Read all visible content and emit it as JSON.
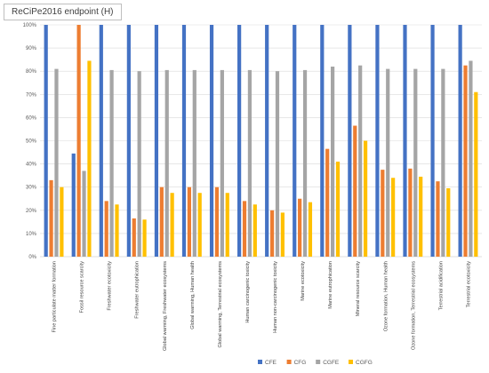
{
  "chart_data": {
    "type": "bar",
    "title": "ReCiPe2016 endpoint (H)",
    "xlabel": "",
    "ylabel": "",
    "ylim": [
      0,
      100
    ],
    "yticks": [
      "0%",
      "10%",
      "20%",
      "30%",
      "40%",
      "50%",
      "60%",
      "70%",
      "80%",
      "90%",
      "100%"
    ],
    "grid": true,
    "legend_position": "bottom",
    "categories": [
      "Fine particulate matter formation",
      "Fossil resource scarcity",
      "Freshwater ecotoxicity",
      "Freshwater eutrophication",
      "Global warming, Freshwater ecosystems",
      "Global warming, Human health",
      "Global warming, Terrestrial ecosystems",
      "Human carcinogenic toxicity",
      "Human non-carcinogenic toxicity",
      "Marine ecotoxicity",
      "Marine eutrophication",
      "Mineral resource scarcity",
      "Ozone formation, Human health",
      "Ozone formation, Terrestrial ecosystems",
      "Terrestrial acidification",
      "Terrestrial ecotoxicity"
    ],
    "series": [
      {
        "name": "CFE",
        "color": "#4472c4",
        "values": [
          100,
          44.5,
          100,
          100,
          100,
          100,
          100,
          100,
          100,
          100,
          100,
          100,
          100,
          100,
          100,
          100
        ]
      },
      {
        "name": "CFG",
        "color": "#ed7d31",
        "values": [
          33,
          100,
          24,
          16.5,
          30,
          30,
          30,
          24,
          20,
          25,
          46.5,
          56.5,
          37.5,
          38,
          32.5,
          82.5
        ]
      },
      {
        "name": "CGFE",
        "color": "#a5a5a5",
        "values": [
          81,
          37,
          80.5,
          80,
          80.5,
          80.5,
          80.5,
          80.5,
          80,
          80.5,
          82,
          82.5,
          81,
          81,
          81,
          84.5
        ]
      },
      {
        "name": "CGFG",
        "color": "#ffc000",
        "values": [
          30,
          84.5,
          22.5,
          16,
          27.5,
          27.5,
          27.5,
          22.5,
          19,
          23.5,
          41,
          50,
          34,
          34.5,
          29.5,
          71
        ]
      }
    ]
  }
}
